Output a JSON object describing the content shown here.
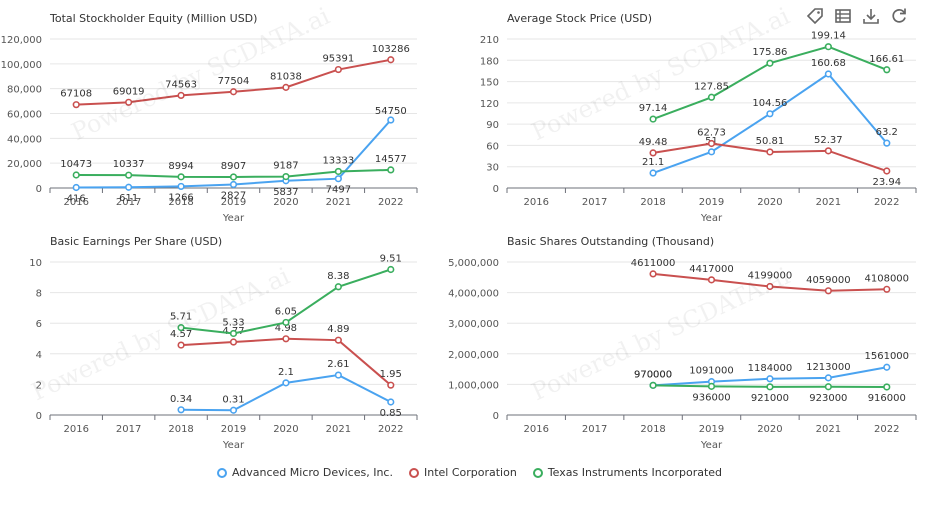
{
  "toolbar": {
    "icons": [
      "tag-icon",
      "data-view-icon",
      "download-icon",
      "refresh-icon"
    ]
  },
  "watermark": "Powered by SCDATA.ai",
  "series_meta": [
    {
      "name": "Advanced Micro Devices, Inc.",
      "color": "#4aa3f0"
    },
    {
      "name": "Intel Corporation",
      "color": "#c9504f"
    },
    {
      "name": "Texas Instruments Incorporated",
      "color": "#3aae5e"
    }
  ],
  "chart_data": [
    {
      "type": "line",
      "title": "Total Stockholder Equity (Million USD)",
      "xlabel": "Year",
      "categories": [
        "2016",
        "2017",
        "2018",
        "2019",
        "2020",
        "2021",
        "2022"
      ],
      "ylim": [
        0,
        120000
      ],
      "yticks": [
        0,
        20000,
        40000,
        60000,
        80000,
        100000,
        120000
      ],
      "ytick_labels": [
        "0",
        "20,000",
        "40,000",
        "60,000",
        "80,000",
        "100,000",
        "120,000"
      ],
      "series": [
        {
          "name": "Advanced Micro Devices, Inc.",
          "values": [
            416,
            611,
            1266,
            2827,
            5837,
            7497,
            54750
          ]
        },
        {
          "name": "Intel Corporation",
          "values": [
            67108,
            69019,
            74563,
            77504,
            81038,
            95391,
            103286
          ]
        },
        {
          "name": "Texas Instruments Incorporated",
          "values": [
            10473,
            10337,
            8994,
            8907,
            9187,
            13333,
            14577
          ]
        }
      ]
    },
    {
      "type": "line",
      "title": "Average Stock Price (USD)",
      "xlabel": "Year",
      "categories": [
        "2016",
        "2017",
        "2018",
        "2019",
        "2020",
        "2021",
        "2022"
      ],
      "ylim": [
        0,
        210
      ],
      "yticks": [
        0,
        30,
        60,
        90,
        120,
        150,
        180,
        210
      ],
      "ytick_labels": [
        "0",
        "30",
        "60",
        "90",
        "120",
        "150",
        "180",
        "210"
      ],
      "series": [
        {
          "name": "Advanced Micro Devices, Inc.",
          "values": [
            null,
            null,
            21.1,
            51.0,
            104.56,
            160.68,
            63.2
          ]
        },
        {
          "name": "Intel Corporation",
          "values": [
            null,
            null,
            49.48,
            62.73,
            50.81,
            52.37,
            23.94
          ]
        },
        {
          "name": "Texas Instruments Incorporated",
          "values": [
            null,
            null,
            97.14,
            127.85,
            175.86,
            199.14,
            166.61
          ]
        }
      ]
    },
    {
      "type": "line",
      "title": "Basic Earnings Per Share (USD)",
      "xlabel": "Year",
      "categories": [
        "2016",
        "2017",
        "2018",
        "2019",
        "2020",
        "2021",
        "2022"
      ],
      "ylim": [
        0,
        10
      ],
      "yticks": [
        0,
        2,
        4,
        6,
        8,
        10
      ],
      "ytick_labels": [
        "0",
        "2",
        "4",
        "6",
        "8",
        "10"
      ],
      "series": [
        {
          "name": "Advanced Micro Devices, Inc.",
          "values": [
            null,
            null,
            0.34,
            0.31,
            2.1,
            2.61,
            0.85
          ]
        },
        {
          "name": "Intel Corporation",
          "values": [
            null,
            null,
            4.57,
            4.77,
            4.98,
            4.89,
            1.95
          ]
        },
        {
          "name": "Texas Instruments Incorporated",
          "values": [
            null,
            null,
            5.71,
            5.33,
            6.05,
            8.38,
            9.51
          ]
        }
      ]
    },
    {
      "type": "line",
      "title": "Basic Shares Outstanding (Thousand)",
      "xlabel": "Year",
      "categories": [
        "2016",
        "2017",
        "2018",
        "2019",
        "2020",
        "2021",
        "2022"
      ],
      "ylim": [
        0,
        5000000
      ],
      "yticks": [
        0,
        1000000,
        2000000,
        3000000,
        4000000,
        5000000
      ],
      "ytick_labels": [
        "0",
        "1,000,000",
        "2,000,000",
        "3,000,000",
        "4,000,000",
        "5,000,000"
      ],
      "series": [
        {
          "name": "Advanced Micro Devices, Inc.",
          "values": [
            null,
            null,
            970000,
            1091000,
            1184000,
            1213000,
            1561000
          ]
        },
        {
          "name": "Intel Corporation",
          "values": [
            null,
            null,
            4611000,
            4417000,
            4199000,
            4059000,
            4108000
          ]
        },
        {
          "name": "Texas Instruments Incorporated",
          "values": [
            null,
            null,
            970000,
            936000,
            921000,
            923000,
            916000
          ]
        }
      ]
    }
  ]
}
